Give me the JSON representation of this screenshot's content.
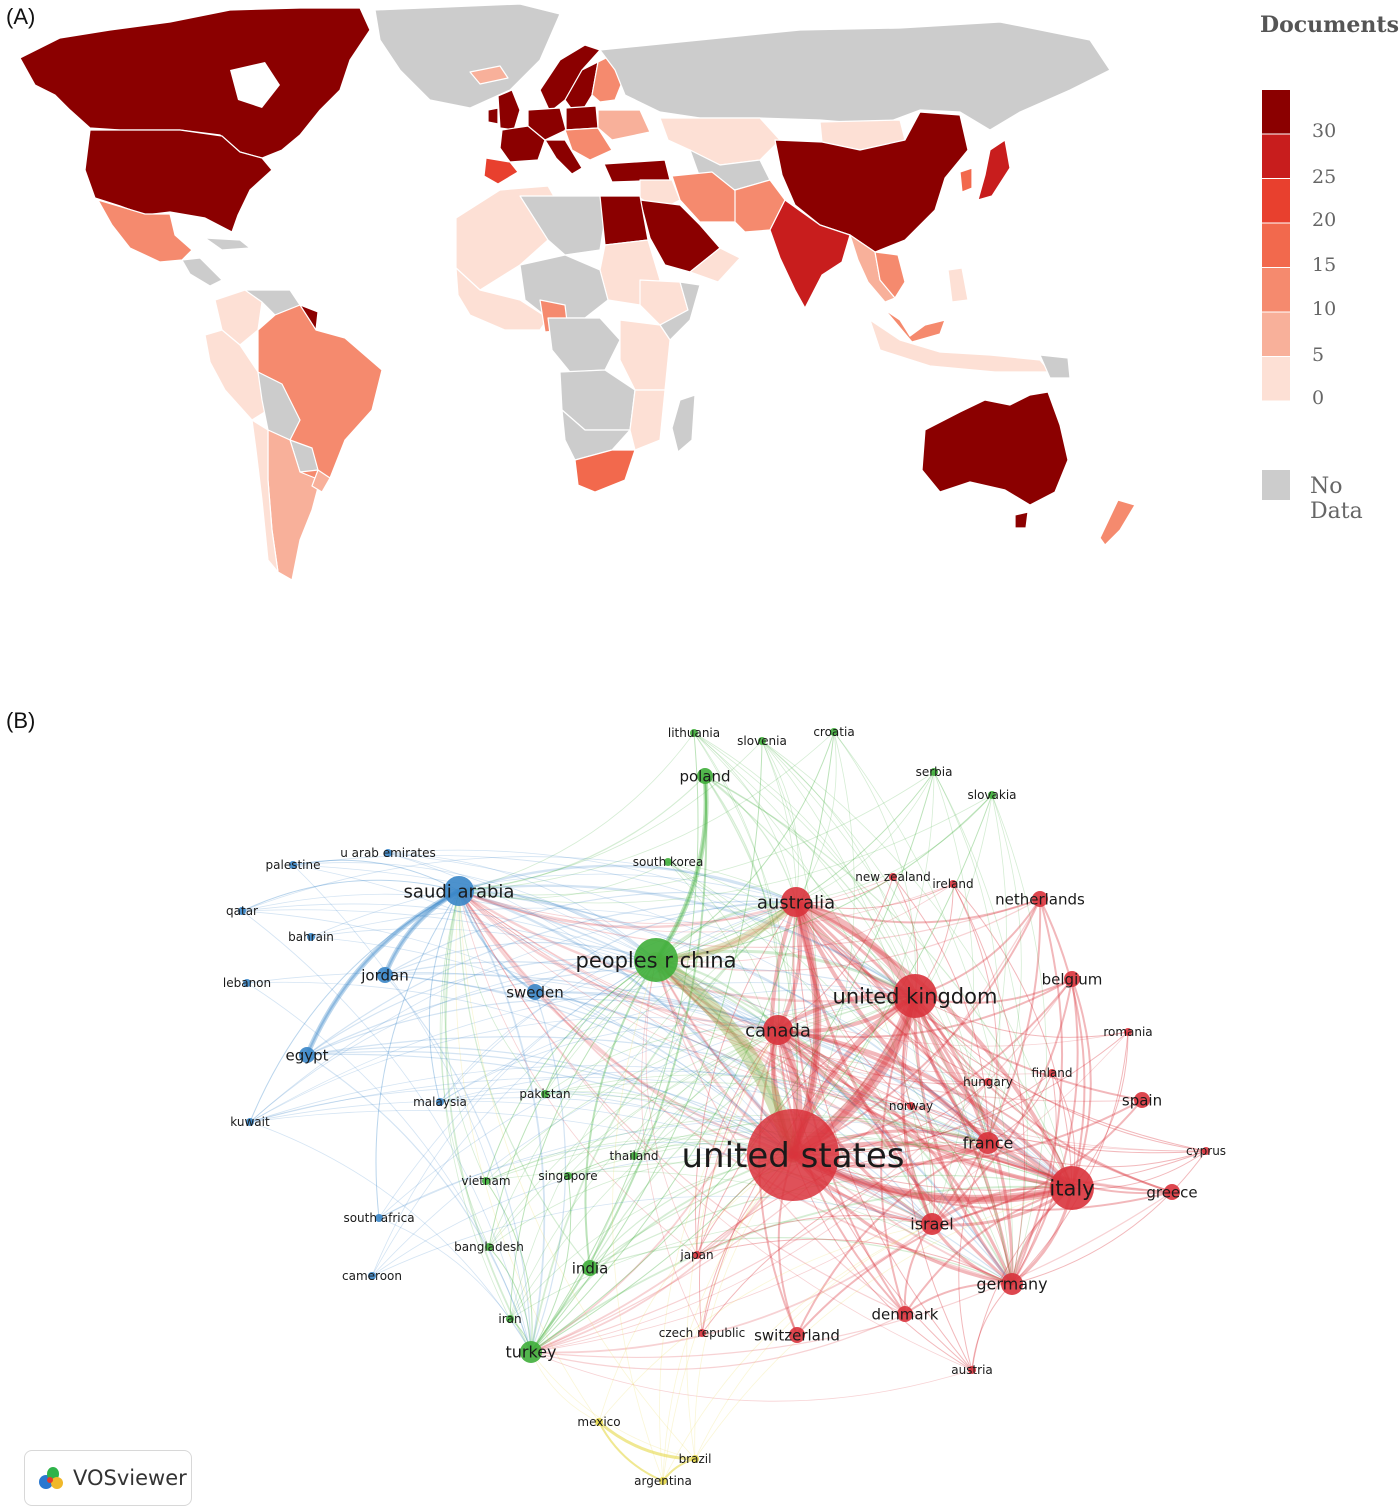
{
  "panel_a_label": "(A)",
  "panel_b_label": "(B)",
  "legend": {
    "title": "Documents",
    "ticks": [
      "30",
      "25",
      "20",
      "15",
      "10",
      "5",
      "0"
    ],
    "colors": [
      "#8b0000",
      "#c81d1d",
      "#e8402e",
      "#f2694d",
      "#f58a6e",
      "#f8b09a",
      "#fde0d5"
    ],
    "no_data_label": "No Data",
    "no_data_color": "#cccccc"
  },
  "map_colors": {
    "c30": "#8b0000",
    "c25": "#c81d1d",
    "c20": "#e8402e",
    "c15": "#f2694d",
    "c10": "#f58a6e",
    "c5": "#f8b09a",
    "c0": "#fde0d5",
    "none": "#cccccc"
  },
  "network": {
    "cluster_colors": {
      "red": "#d9333c",
      "green": "#3fae3a",
      "blue": "#3a86c8",
      "yellow": "#e6d84a"
    },
    "nodes": [
      {
        "label": "united states",
        "cluster": "red",
        "weight": 10
      },
      {
        "label": "united kingdom",
        "cluster": "red",
        "weight": 6
      },
      {
        "label": "peoples r china",
        "cluster": "green",
        "weight": 5
      },
      {
        "label": "italy",
        "cluster": "red",
        "weight": 5
      },
      {
        "label": "saudi arabia",
        "cluster": "blue",
        "weight": 4
      },
      {
        "label": "australia",
        "cluster": "red",
        "weight": 4
      },
      {
        "label": "canada",
        "cluster": "red",
        "weight": 4
      },
      {
        "label": "france",
        "cluster": "red",
        "weight": 3
      },
      {
        "label": "germany",
        "cluster": "red",
        "weight": 3
      },
      {
        "label": "israel",
        "cluster": "red",
        "weight": 3
      },
      {
        "label": "turkey",
        "cluster": "green",
        "weight": 3
      },
      {
        "label": "jordan",
        "cluster": "blue",
        "weight": 2
      },
      {
        "label": "egypt",
        "cluster": "blue",
        "weight": 2
      },
      {
        "label": "poland",
        "cluster": "green",
        "weight": 2
      },
      {
        "label": "sweden",
        "cluster": "blue",
        "weight": 2
      },
      {
        "label": "india",
        "cluster": "green",
        "weight": 2
      },
      {
        "label": "switzerland",
        "cluster": "red",
        "weight": 2
      },
      {
        "label": "spain",
        "cluster": "red",
        "weight": 2
      },
      {
        "label": "greece",
        "cluster": "red",
        "weight": 2
      },
      {
        "label": "netherlands",
        "cluster": "red",
        "weight": 2
      },
      {
        "label": "belgium",
        "cluster": "red",
        "weight": 2
      },
      {
        "label": "denmark",
        "cluster": "red",
        "weight": 2
      },
      {
        "label": "japan",
        "cluster": "red",
        "weight": 1
      },
      {
        "label": "ireland",
        "cluster": "red",
        "weight": 1
      },
      {
        "label": "new zealand",
        "cluster": "red",
        "weight": 1
      },
      {
        "label": "romania",
        "cluster": "red",
        "weight": 1
      },
      {
        "label": "finland",
        "cluster": "red",
        "weight": 1
      },
      {
        "label": "hungary",
        "cluster": "red",
        "weight": 1
      },
      {
        "label": "norway",
        "cluster": "red",
        "weight": 1
      },
      {
        "label": "cyprus",
        "cluster": "red",
        "weight": 1
      },
      {
        "label": "austria",
        "cluster": "red",
        "weight": 1
      },
      {
        "label": "czech republic",
        "cluster": "red",
        "weight": 1
      },
      {
        "label": "south korea",
        "cluster": "green",
        "weight": 1
      },
      {
        "label": "lithuania",
        "cluster": "green",
        "weight": 1
      },
      {
        "label": "slovenia",
        "cluster": "green",
        "weight": 1
      },
      {
        "label": "croatia",
        "cluster": "green",
        "weight": 1
      },
      {
        "label": "serbia",
        "cluster": "green",
        "weight": 1
      },
      {
        "label": "slovakia",
        "cluster": "green",
        "weight": 1
      },
      {
        "label": "pakistan",
        "cluster": "green",
        "weight": 1
      },
      {
        "label": "thailand",
        "cluster": "green",
        "weight": 1
      },
      {
        "label": "singapore",
        "cluster": "green",
        "weight": 1
      },
      {
        "label": "vietnam",
        "cluster": "green",
        "weight": 1
      },
      {
        "label": "bangladesh",
        "cluster": "green",
        "weight": 1
      },
      {
        "label": "iran",
        "cluster": "green",
        "weight": 1
      },
      {
        "label": "u arab emirates",
        "cluster": "blue",
        "weight": 1
      },
      {
        "label": "palestine",
        "cluster": "blue",
        "weight": 1
      },
      {
        "label": "qatar",
        "cluster": "blue",
        "weight": 1
      },
      {
        "label": "bahrain",
        "cluster": "blue",
        "weight": 1
      },
      {
        "label": "lebanon",
        "cluster": "blue",
        "weight": 1
      },
      {
        "label": "kuwait",
        "cluster": "blue",
        "weight": 1
      },
      {
        "label": "malaysia",
        "cluster": "blue",
        "weight": 1
      },
      {
        "label": "south africa",
        "cluster": "blue",
        "weight": 1
      },
      {
        "label": "cameroon",
        "cluster": "blue",
        "weight": 1
      },
      {
        "label": "mexico",
        "cluster": "yellow",
        "weight": 1
      },
      {
        "label": "brazil",
        "cluster": "yellow",
        "weight": 1
      },
      {
        "label": "argentina",
        "cluster": "yellow",
        "weight": 1
      }
    ]
  },
  "badge": {
    "label": "VOSviewer"
  }
}
